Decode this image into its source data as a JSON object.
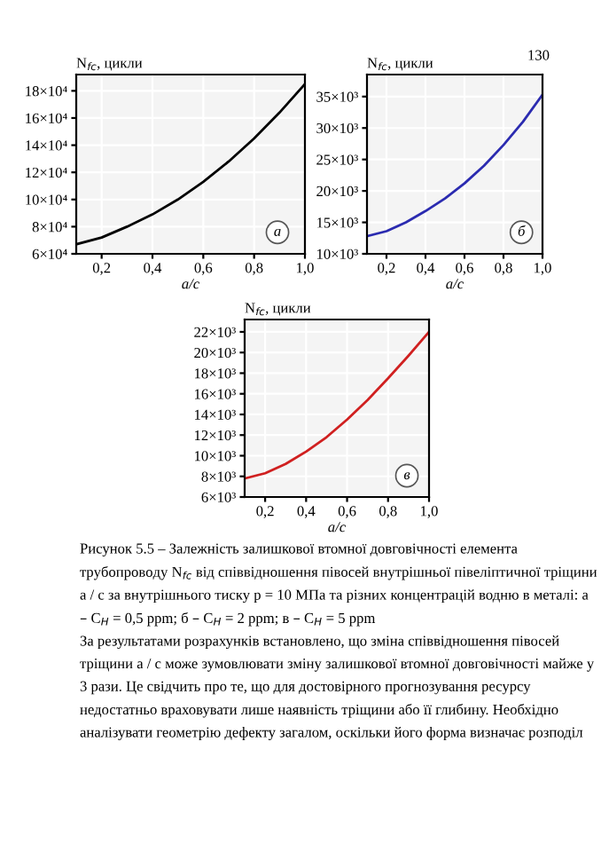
{
  "chart_data": [
    {
      "type": "line",
      "xlabel": "a/c",
      "ylabel": "N$_{fc}$, цикли",
      "x": [
        0.1,
        0.2,
        0.3,
        0.4,
        0.5,
        0.6,
        0.7,
        0.8,
        0.9,
        1.0
      ],
      "series": [
        {
          "color": "#000000",
          "values": [
            67000,
            72000,
            80000,
            89000,
            100000,
            113000,
            128000,
            145000,
            164000,
            185000
          ]
        }
      ],
      "xlim": [
        0.1,
        1.0
      ],
      "xticks": [
        {
          "value": 0.2,
          "label": "0,2"
        },
        {
          "value": 0.4,
          "label": "0,4"
        },
        {
          "value": 0.6,
          "label": "0,6"
        },
        {
          "value": 0.8,
          "label": "0,8"
        },
        {
          "value": 1.0,
          "label": "1,0"
        }
      ],
      "ylim": [
        60000,
        192000
      ],
      "yticks": [
        {
          "value": 60000,
          "label": "6×10⁴"
        },
        {
          "value": 80000,
          "label": "8×10⁴"
        },
        {
          "value": 100000,
          "label": "10×10⁴"
        },
        {
          "value": 120000,
          "label": "12×10⁴"
        },
        {
          "value": 140000,
          "label": "14×10⁴"
        },
        {
          "value": 160000,
          "label": "16×10⁴"
        },
        {
          "value": 180000,
          "label": "18×10⁴"
        }
      ],
      "grid": true,
      "annotations": [
        "а"
      ]
    },
    {
      "type": "line",
      "xlabel": "a/c",
      "ylabel": "N$_{fc}$, цикли",
      "x": [
        0.1,
        0.2,
        0.3,
        0.4,
        0.5,
        0.6,
        0.7,
        0.8,
        0.9,
        1.0
      ],
      "series": [
        {
          "color": "#2b2bb0",
          "values": [
            12800,
            13600,
            15000,
            16800,
            18800,
            21200,
            24000,
            27300,
            31000,
            35300
          ]
        }
      ],
      "xlim": [
        0.1,
        1.0
      ],
      "xticks": [
        {
          "value": 0.2,
          "label": "0,2"
        },
        {
          "value": 0.4,
          "label": "0,4"
        },
        {
          "value": 0.6,
          "label": "0,6"
        },
        {
          "value": 0.8,
          "label": "0,8"
        },
        {
          "value": 1.0,
          "label": "1,0"
        }
      ],
      "ylim": [
        10000,
        38500
      ],
      "yticks": [
        {
          "value": 10000,
          "label": "10×10³"
        },
        {
          "value": 15000,
          "label": "15×10³"
        },
        {
          "value": 20000,
          "label": "20×10³"
        },
        {
          "value": 25000,
          "label": "25×10³"
        },
        {
          "value": 30000,
          "label": "30×10³"
        },
        {
          "value": 35000,
          "label": "35×10³"
        }
      ],
      "grid": true,
      "annotations": [
        "б"
      ]
    },
    {
      "type": "line",
      "xlabel": "a/c",
      "ylabel": "N$_{fc}$, цикли",
      "x": [
        0.1,
        0.2,
        0.3,
        0.4,
        0.5,
        0.6,
        0.7,
        0.8,
        0.9,
        1.0
      ],
      "series": [
        {
          "color": "#d02020",
          "values": [
            7800,
            8300,
            9200,
            10400,
            11800,
            13500,
            15400,
            17500,
            19700,
            22000
          ]
        }
      ],
      "xlim": [
        0.1,
        1.0
      ],
      "xticks": [
        {
          "value": 0.2,
          "label": "0,2"
        },
        {
          "value": 0.4,
          "label": "0,4"
        },
        {
          "value": 0.6,
          "label": "0,6"
        },
        {
          "value": 0.8,
          "label": "0,8"
        },
        {
          "value": 1.0,
          "label": "1,0"
        }
      ],
      "ylim": [
        6000,
        23200
      ],
      "yticks": [
        {
          "value": 6000,
          "label": "6×10³"
        },
        {
          "value": 8000,
          "label": "8×10³"
        },
        {
          "value": 10000,
          "label": "10×10³"
        },
        {
          "value": 12000,
          "label": "12×10³"
        },
        {
          "value": 14000,
          "label": "14×10³"
        },
        {
          "value": 16000,
          "label": "16×10³"
        },
        {
          "value": 18000,
          "label": "18×10³"
        },
        {
          "value": 20000,
          "label": "20×10³"
        },
        {
          "value": 22000,
          "label": "22×10³"
        }
      ],
      "grid": true,
      "annotations": [
        "в",
        "130",
        "Рисунок 5.5 – Залежність залишкової втомної довговічності елемента трубопроводу N$_{fc}$ від співвідношення півосей внутрішньої півеліптичної тріщини a / c за внутрішнього тиску p = 10 МПа та різних концентрацій водню в металі: а – C$_{H}$ = 0,5 ppm; б – C$_{H}$ = 2 ppm; в – C$_{H}$ = 5 ppm",
        "За результатами розрахунків встановлено, що зміна співвідношення півосей тріщини a / c може зумовлювати зміну залишкової втомної довговічності майже у 3 рази. Це свідчить про те, що для достовірного прогнозування ресурсу недостатньо враховувати лише наявність тріщини або її глибину. Необхідно аналізувати геометрію дефекту загалом, оскільки його форма визначає розподіл"
      ]
    }
  ]
}
